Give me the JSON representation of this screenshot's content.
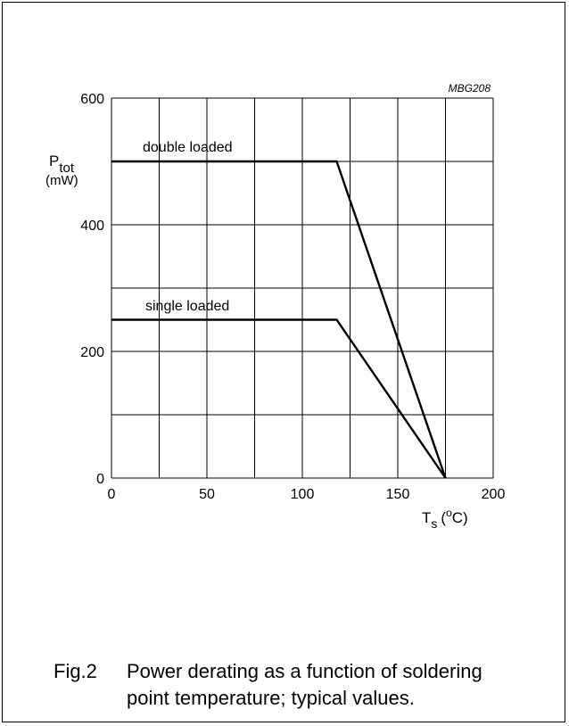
{
  "chart_data": {
    "type": "line",
    "code": "MBG208",
    "ylabel_main": "P",
    "ylabel_sub": "tot",
    "ylabel_unit": "(mW)",
    "xlabel_main": "T",
    "xlabel_sub": "s",
    "xlabel_unit_open": "(",
    "xlabel_unit_sup": "o",
    "xlabel_unit_close": "C)",
    "xlim": [
      0,
      200
    ],
    "ylim": [
      0,
      600
    ],
    "x_ticks": [
      0,
      50,
      100,
      150,
      200
    ],
    "y_ticks": [
      0,
      200,
      400,
      600
    ],
    "grid": true,
    "series": [
      {
        "name": "double loaded",
        "x": [
          0,
          118,
          175
        ],
        "y": [
          500,
          500,
          0
        ]
      },
      {
        "name": "single loaded",
        "x": [
          0,
          118,
          175
        ],
        "y": [
          250,
          250,
          0
        ]
      }
    ]
  },
  "caption": {
    "fig": "Fig.2",
    "text": "Power derating as a function of soldering point temperature; typical values."
  }
}
